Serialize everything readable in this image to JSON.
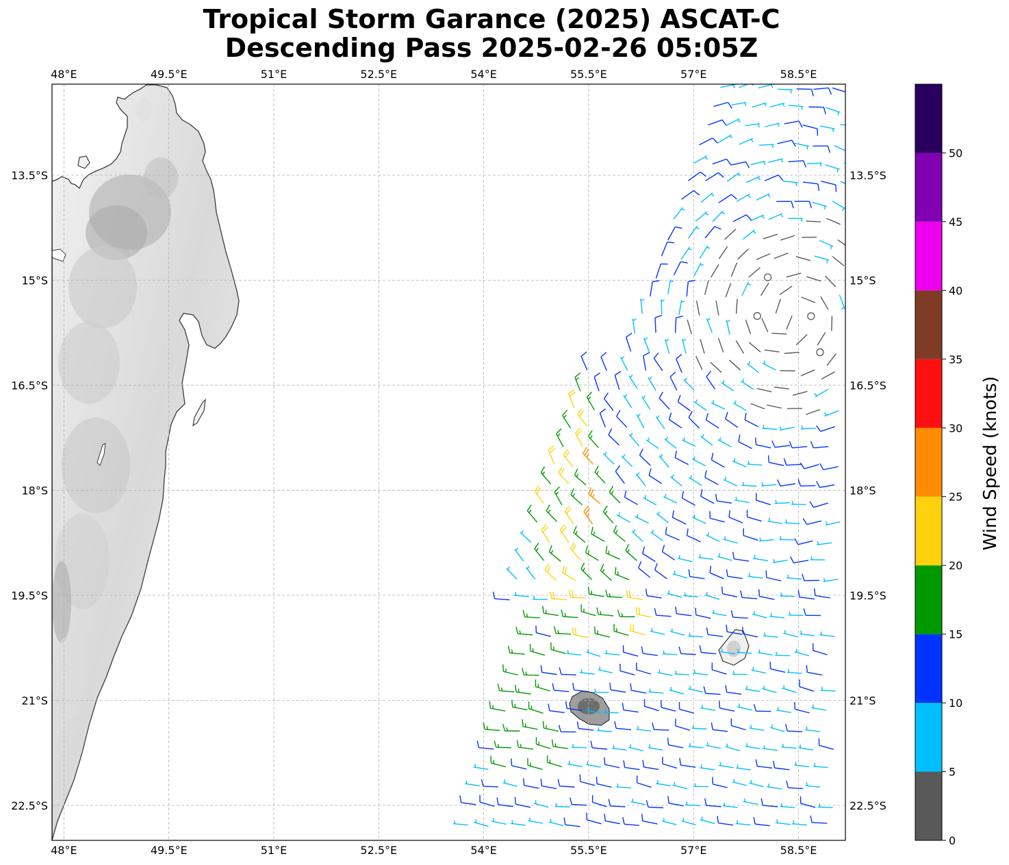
{
  "title": {
    "line1": "Tropical Storm Garance (2025) ASCAT-C",
    "line2": "Descending Pass 2025-02-26 05:05Z"
  },
  "map": {
    "projection": "PlateCarree",
    "lon_range": [
      47.83,
      59.17
    ],
    "lat_range": [
      -23.0,
      -12.2
    ],
    "gridlines": true,
    "x_ticks": [
      {
        "lon": 48.0,
        "label": "48°E"
      },
      {
        "lon": 49.5,
        "label": "49.5°E"
      },
      {
        "lon": 51.0,
        "label": "51°E"
      },
      {
        "lon": 52.5,
        "label": "52.5°E"
      },
      {
        "lon": 54.0,
        "label": "54°E"
      },
      {
        "lon": 55.5,
        "label": "55.5°E"
      },
      {
        "lon": 57.0,
        "label": "57°E"
      },
      {
        "lon": 58.5,
        "label": "58.5°E"
      }
    ],
    "y_ticks": [
      {
        "lat": -13.5,
        "label": "13.5°S"
      },
      {
        "lat": -15.0,
        "label": "15°S"
      },
      {
        "lat": -16.5,
        "label": "16.5°S"
      },
      {
        "lat": -18.0,
        "label": "18°S"
      },
      {
        "lat": -19.5,
        "label": "19.5°S"
      },
      {
        "lat": -21.0,
        "label": "21°S"
      },
      {
        "lat": -22.5,
        "label": "22.5°S"
      }
    ],
    "land_features": [
      "Madagascar (east coast)",
      "Réunion",
      "Mauritius"
    ],
    "storm_center_approx": {
      "lon": 58.4,
      "lat": -15.5
    }
  },
  "colorbar": {
    "label": "Wind Speed (knots)",
    "range": [
      0,
      55
    ],
    "bins": [
      {
        "from": 0,
        "to": 5,
        "color": "#595959"
      },
      {
        "from": 5,
        "to": 10,
        "color": "#00bfff"
      },
      {
        "from": 10,
        "to": 15,
        "color": "#0033ff"
      },
      {
        "from": 15,
        "to": 20,
        "color": "#009900"
      },
      {
        "from": 20,
        "to": 25,
        "color": "#ffd20f"
      },
      {
        "from": 25,
        "to": 30,
        "color": "#ff8c00"
      },
      {
        "from": 30,
        "to": 35,
        "color": "#ff1010"
      },
      {
        "from": 35,
        "to": 40,
        "color": "#7f3b25"
      },
      {
        "from": 40,
        "to": 45,
        "color": "#ee00ee"
      },
      {
        "from": 45,
        "to": 50,
        "color": "#8000b2"
      },
      {
        "from": 50,
        "to": 55,
        "color": "#2a005f"
      }
    ],
    "tick_labels": [
      "0",
      "5",
      "10",
      "15",
      "20",
      "25",
      "30",
      "35",
      "40",
      "45",
      "50"
    ]
  }
}
